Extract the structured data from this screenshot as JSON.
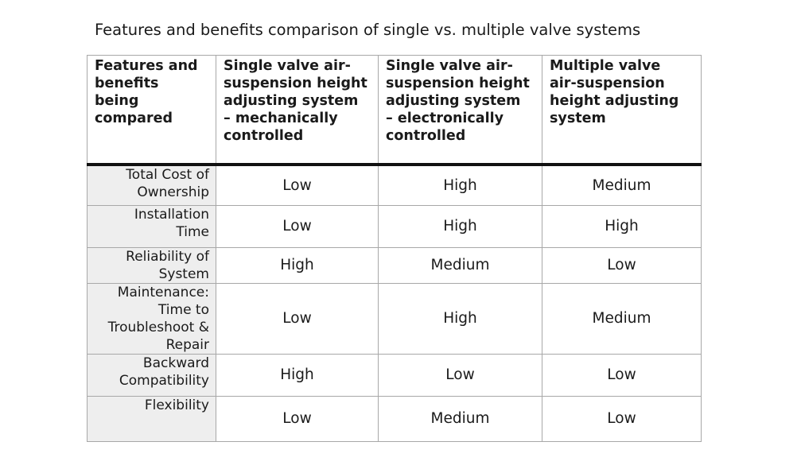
{
  "title": "Features and benefits comparison of single vs. multiple valve systems",
  "table": {
    "headers": [
      "Features and\nbenefits\nbeing\ncompared",
      "Single valve air-\nsuspension height\nadjusting system\n– mechanically\ncontrolled",
      "Single valve air-\nsuspension height\nadjusting system\n– electronically\ncontrolled",
      "Multiple valve\nair-suspension\nheight adjusting\nsystem"
    ],
    "rows": [
      {
        "feature": "Total Cost of\nOwnership",
        "values": [
          "Low",
          "High",
          "Medium"
        ]
      },
      {
        "feature": "Installation\nTime",
        "values": [
          "Low",
          "High",
          "High"
        ]
      },
      {
        "feature": "Reliability of\nSystem",
        "values": [
          "High",
          "Medium",
          "Low"
        ]
      },
      {
        "feature": "Maintenance:\nTime to\nTroubleshoot &\nRepair",
        "values": [
          "Low",
          "High",
          "Medium"
        ]
      },
      {
        "feature": "Backward\nCompatibility",
        "values": [
          "High",
          "Low",
          "Low"
        ]
      },
      {
        "feature": "Flexibility",
        "values": [
          "Low",
          "Medium",
          "Low"
        ]
      }
    ]
  }
}
